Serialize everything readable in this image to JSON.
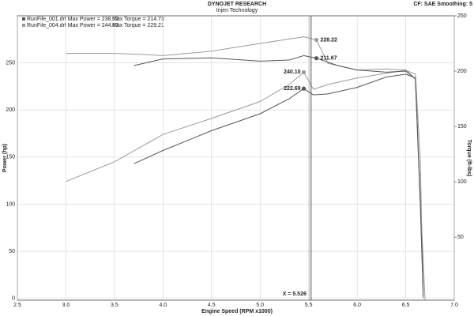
{
  "chart_data": {
    "type": "line",
    "title": "DYNOJET RESEARCH",
    "subtitle": "Injen Technology",
    "corner_note": "CF: SAE  Smoothing: 5",
    "x_label": "Engine Speed (RPM x1000)",
    "y_label": "Power (hp)",
    "y2_label": "Torque (ft-lbs)",
    "legend": [
      "RunFile_001.drf Max Power = 238.72",
      "Max Torque = 214.73",
      "RunFile_004.drf Max Power = 244.67",
      "Max Torque = 229.21"
    ],
    "xlim": [
      2.5,
      7.0
    ],
    "xticks": [
      2.5,
      {
        "value": 3.0,
        "label": "3.0"
      },
      3.5,
      {
        "value": 4.0,
        "label": "4.0"
      },
      4.5,
      {
        "value": 5.0,
        "label": "5.0"
      },
      5.5,
      {
        "value": 6.0,
        "label": "6.0"
      },
      6.5,
      {
        "value": 7.0,
        "label": "7.0"
      }
    ],
    "ylim": [
      -2,
      300
    ],
    "yticks": [
      0,
      50,
      100,
      150,
      200,
      250
    ],
    "y2lim": [
      -7,
      250
    ],
    "y2ticks": [
      50,
      100,
      150,
      200,
      250
    ],
    "grid": true,
    "cursor_x": 5.526,
    "cursor_label": "X = 5.526",
    "series": [
      {
        "color": "#9a9a9a",
        "axis": "y",
        "x": [
          3.0,
          3.5,
          4.0,
          4.5,
          5.0,
          5.3,
          5.45,
          5.55,
          5.7,
          6.0,
          6.3,
          6.5,
          6.6,
          6.65,
          6.68
        ],
        "values": [
          124,
          145,
          174,
          191,
          209,
          227,
          240,
          222,
          227,
          234,
          239,
          242,
          238,
          149,
          0
        ],
        "cursor": {
          "x": 5.45,
          "value": 240.1,
          "label": "240.10"
        }
      },
      {
        "color": "#555555",
        "axis": "y",
        "x": [
          3.7,
          4.0,
          4.5,
          5.0,
          5.3,
          5.45,
          5.55,
          5.7,
          6.0,
          6.3,
          6.5,
          6.6,
          6.65,
          6.68
        ],
        "values": [
          143,
          157,
          178,
          196,
          212,
          222.69,
          216,
          217,
          224,
          235,
          238,
          234,
          107,
          7
        ],
        "cursor": {
          "x": 5.45,
          "value": 222.69,
          "label": "222.69"
        }
      },
      {
        "color": "#9a9a9a",
        "axis": "y2",
        "x": [
          3.0,
          3.5,
          3.8,
          4.0,
          4.5,
          5.0,
          5.3,
          5.45,
          5.58,
          5.7,
          6.0,
          6.3,
          6.5,
          6.6,
          6.65,
          6.7
        ],
        "values": [
          216,
          216,
          215,
          214,
          218,
          225,
          229,
          231,
          228.22,
          207,
          201,
          202,
          201,
          193,
          86,
          -7
        ],
        "cursor": {
          "x": 5.58,
          "value": 228.22,
          "label": "228.22"
        }
      },
      {
        "color": "#555555",
        "axis": "y2",
        "x": [
          3.7,
          4.0,
          4.5,
          5.0,
          5.3,
          5.45,
          5.58,
          5.8,
          6.0,
          6.3,
          6.5,
          6.6,
          6.65,
          6.68
        ],
        "values": [
          205,
          211,
          212,
          209,
          210,
          214,
          211.67,
          205,
          201,
          199,
          200,
          193,
          79,
          -4
        ],
        "cursor": {
          "x": 5.58,
          "value": 211.67,
          "label": "211.67"
        }
      }
    ]
  }
}
